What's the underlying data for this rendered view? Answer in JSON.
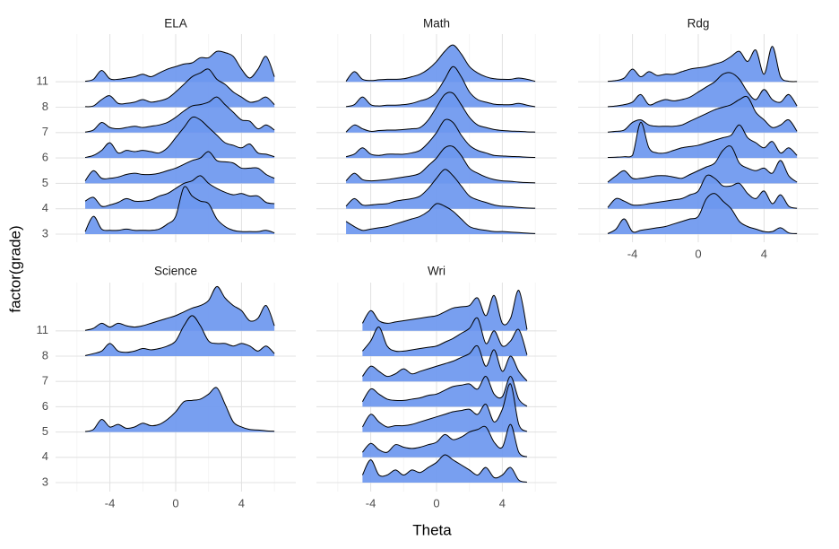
{
  "chart_data": {
    "type": "ridgeline",
    "x_label": "Theta",
    "y_label": "factor(grade)",
    "categories": [
      "3",
      "4",
      "5",
      "6",
      "7",
      "8",
      "11"
    ],
    "x": [
      -5.5,
      -5,
      -4.5,
      -4,
      -3.5,
      -3,
      -2.5,
      -2,
      -1.5,
      -1,
      -0.5,
      0,
      0.5,
      1,
      1.5,
      2,
      2.5,
      3,
      3.5,
      4,
      4.5,
      5,
      5.5,
      6
    ],
    "xlim": [
      -7.3,
      7.3
    ],
    "xticks": [
      -4,
      0,
      4
    ],
    "x_minor_grid": [
      -6,
      -2,
      2,
      6
    ],
    "grid": true,
    "color": "#6c97ef",
    "panels": [
      {
        "title": "ELA",
        "ridges": [
          [
            0.1,
            0.7,
            0.2,
            0.15,
            0.15,
            0.2,
            0.15,
            0.15,
            0.15,
            0.2,
            0.4,
            0.7,
            1.85,
            1.5,
            1.3,
            1.2,
            0.6,
            0.3,
            0.15,
            0.1,
            0.1,
            0.1,
            0.15,
            0.05
          ],
          [
            0.3,
            0.45,
            0.1,
            0.15,
            0.25,
            0.4,
            0.3,
            0.3,
            0.35,
            0.5,
            0.6,
            0.8,
            1.0,
            1.1,
            1.3,
            1.0,
            0.8,
            0.65,
            0.55,
            0.6,
            0.5,
            0.5,
            0.25,
            0.2
          ],
          [
            0.1,
            0.5,
            0.2,
            0.2,
            0.25,
            0.35,
            0.4,
            0.35,
            0.35,
            0.4,
            0.5,
            0.6,
            0.75,
            0.9,
            1.0,
            1.25,
            0.9,
            0.85,
            0.8,
            0.6,
            0.6,
            0.6,
            0.35,
            0.2
          ],
          [
            0.02,
            0.1,
            0.3,
            0.6,
            0.2,
            0.3,
            0.25,
            0.3,
            0.25,
            0.2,
            0.4,
            0.8,
            1.2,
            1.6,
            1.5,
            1.2,
            0.9,
            0.6,
            0.5,
            0.4,
            0.55,
            0.2,
            0.15,
            0.05
          ],
          [
            0.02,
            0.1,
            0.4,
            0.2,
            0.15,
            0.2,
            0.25,
            0.2,
            0.25,
            0.3,
            0.4,
            0.6,
            0.85,
            1.05,
            1.1,
            1.2,
            1.4,
            1.1,
            0.8,
            0.5,
            0.45,
            0.15,
            0.3,
            0.1
          ],
          [
            0.02,
            0.05,
            0.3,
            0.45,
            0.15,
            0.15,
            0.2,
            0.3,
            0.2,
            0.25,
            0.35,
            0.6,
            0.9,
            1.2,
            1.35,
            1.5,
            1.1,
            0.9,
            0.6,
            0.4,
            0.2,
            0.25,
            0.4,
            0.1
          ],
          [
            0.02,
            0.1,
            0.45,
            0.12,
            0.1,
            0.15,
            0.2,
            0.3,
            0.2,
            0.35,
            0.5,
            0.6,
            0.7,
            0.75,
            0.95,
            0.95,
            1.2,
            1.15,
            1.0,
            0.5,
            0.15,
            0.5,
            1.0,
            0.2
          ]
        ]
      },
      {
        "title": "Math",
        "ridges": [
          [
            0.5,
            0.3,
            0.15,
            0.2,
            0.25,
            0.3,
            0.4,
            0.5,
            0.6,
            0.7,
            0.9,
            1.2,
            1.1,
            0.9,
            0.6,
            0.3,
            0.2,
            0.15,
            0.1,
            0.1,
            0.08,
            0.06,
            0.04,
            0.02
          ],
          [
            0.1,
            0.4,
            0.15,
            0.15,
            0.18,
            0.2,
            0.3,
            0.35,
            0.4,
            0.5,
            0.8,
            1.2,
            1.55,
            1.3,
            0.9,
            0.5,
            0.35,
            0.25,
            0.15,
            0.1,
            0.08,
            0.05,
            0.03,
            0.02
          ],
          [
            0.1,
            0.4,
            0.15,
            0.1,
            0.12,
            0.15,
            0.2,
            0.25,
            0.3,
            0.4,
            0.7,
            1.0,
            1.4,
            1.45,
            1.1,
            0.6,
            0.4,
            0.25,
            0.15,
            0.1,
            0.08,
            0.05,
            0.03,
            0.02
          ],
          [
            0.05,
            0.15,
            0.4,
            0.15,
            0.1,
            0.15,
            0.15,
            0.15,
            0.2,
            0.3,
            0.6,
            1.0,
            1.5,
            1.4,
            0.9,
            0.5,
            0.3,
            0.2,
            0.1,
            0.08,
            0.06,
            0.05,
            0.03,
            0.02
          ],
          [
            0.02,
            0.3,
            0.15,
            0.05,
            0.08,
            0.1,
            0.1,
            0.12,
            0.15,
            0.2,
            0.5,
            1.0,
            1.5,
            1.55,
            1.1,
            0.6,
            0.3,
            0.2,
            0.12,
            0.08,
            0.06,
            0.05,
            0.03,
            0.02
          ],
          [
            0.02,
            0.1,
            0.4,
            0.1,
            0.05,
            0.08,
            0.08,
            0.1,
            0.15,
            0.25,
            0.35,
            0.6,
            1.1,
            1.6,
            1.2,
            0.6,
            0.3,
            0.2,
            0.12,
            0.1,
            0.1,
            0.15,
            0.08,
            0.02
          ],
          [
            0.02,
            0.4,
            0.1,
            0.05,
            0.08,
            0.1,
            0.1,
            0.12,
            0.2,
            0.3,
            0.5,
            0.8,
            1.2,
            1.45,
            1.1,
            0.6,
            0.35,
            0.2,
            0.12,
            0.1,
            0.1,
            0.15,
            0.1,
            0.02
          ]
        ]
      },
      {
        "title": "Rdg",
        "ridges": [
          [
            0.02,
            0.2,
            0.6,
            0.1,
            0.15,
            0.2,
            0.25,
            0.3,
            0.4,
            0.5,
            0.6,
            0.7,
            1.4,
            1.6,
            1.3,
            1.0,
            0.5,
            0.3,
            0.2,
            0.1,
            0.1,
            0.25,
            0.05,
            0.02
          ],
          [
            0.05,
            0.4,
            0.3,
            0.15,
            0.15,
            0.2,
            0.25,
            0.3,
            0.35,
            0.4,
            0.55,
            0.7,
            1.3,
            1.2,
            0.9,
            0.9,
            1.0,
            0.6,
            0.4,
            0.7,
            0.2,
            0.55,
            0.1,
            0.02
          ],
          [
            0.05,
            0.3,
            0.5,
            0.2,
            0.2,
            0.25,
            0.3,
            0.3,
            0.25,
            0.2,
            0.35,
            0.5,
            0.65,
            0.8,
            1.3,
            1.45,
            0.8,
            0.6,
            0.5,
            0.6,
            0.4,
            0.9,
            0.3,
            0.05
          ],
          [
            0.02,
            0.03,
            0.05,
            0.1,
            1.4,
            0.4,
            0.2,
            0.2,
            0.3,
            0.4,
            0.45,
            0.5,
            0.6,
            0.7,
            0.8,
            0.9,
            1.3,
            0.8,
            0.6,
            0.4,
            0.65,
            0.2,
            0.4,
            0.1
          ],
          [
            0.02,
            0.05,
            0.1,
            0.4,
            0.5,
            0.3,
            0.25,
            0.25,
            0.25,
            0.3,
            0.45,
            0.6,
            0.75,
            0.9,
            1.0,
            1.1,
            1.3,
            1.4,
            0.8,
            0.5,
            0.2,
            0.3,
            0.5,
            0.05
          ],
          [
            0.02,
            0.05,
            0.1,
            0.2,
            0.5,
            0.1,
            0.2,
            0.3,
            0.25,
            0.3,
            0.4,
            0.6,
            0.8,
            1.0,
            1.3,
            1.35,
            1.1,
            0.6,
            0.3,
            0.7,
            0.3,
            0.2,
            0.5,
            0.05
          ],
          [
            0.02,
            0.05,
            0.15,
            0.5,
            0.2,
            0.4,
            0.25,
            0.3,
            0.3,
            0.4,
            0.5,
            0.55,
            0.6,
            0.7,
            0.8,
            1.0,
            1.2,
            0.8,
            1.25,
            0.3,
            1.4,
            0.2,
            0.02,
            0.01
          ]
        ]
      },
      {
        "title": "Science",
        "ridges": [
          null,
          null,
          [
            0.02,
            0.1,
            0.5,
            0.2,
            0.3,
            0.15,
            0.2,
            0.35,
            0.25,
            0.3,
            0.5,
            0.8,
            1.2,
            1.25,
            1.3,
            1.5,
            1.75,
            1.1,
            0.4,
            0.2,
            0.1,
            0.08,
            0.05,
            0.03
          ],
          null,
          null,
          [
            0.02,
            0.1,
            0.2,
            0.5,
            0.2,
            0.15,
            0.2,
            0.3,
            0.25,
            0.3,
            0.4,
            0.6,
            1.2,
            1.6,
            1.2,
            0.6,
            0.5,
            0.5,
            0.4,
            0.5,
            0.4,
            0.2,
            0.4,
            0.1
          ],
          [
            0.02,
            0.1,
            0.3,
            0.15,
            0.3,
            0.2,
            0.15,
            0.2,
            0.3,
            0.4,
            0.5,
            0.6,
            0.75,
            0.9,
            1.0,
            1.2,
            1.75,
            1.3,
            1.0,
            0.8,
            0.4,
            0.5,
            1.0,
            0.2
          ]
        ]
      },
      {
        "title": "Wri",
        "ridges": [
          [
            null,
            null,
            0.3,
            0.9,
            0.3,
            0.3,
            0.5,
            0.3,
            0.5,
            0.4,
            0.6,
            0.8,
            1.1,
            0.9,
            0.7,
            0.5,
            0.3,
            0.6,
            0.2,
            0.3,
            0.6,
            0.1,
            0.02,
            null
          ],
          [
            null,
            null,
            0.2,
            0.55,
            0.3,
            0.2,
            0.5,
            0.4,
            0.35,
            0.4,
            0.5,
            0.6,
            0.9,
            0.7,
            0.8,
            1.0,
            1.1,
            1.2,
            0.6,
            0.4,
            1.3,
            0.2,
            0.02,
            null
          ],
          [
            null,
            null,
            0.2,
            0.7,
            0.4,
            0.2,
            0.25,
            0.25,
            0.3,
            0.4,
            0.5,
            0.6,
            0.7,
            0.8,
            0.85,
            0.9,
            0.7,
            1.1,
            0.4,
            0.9,
            1.9,
            0.3,
            0.02,
            null
          ],
          [
            null,
            null,
            0.2,
            0.7,
            0.5,
            0.3,
            0.25,
            0.25,
            0.3,
            0.35,
            0.45,
            0.5,
            0.65,
            0.8,
            0.85,
            0.9,
            0.7,
            1.2,
            0.5,
            0.4,
            1.2,
            0.3,
            0.02,
            null
          ],
          [
            null,
            null,
            0.2,
            0.6,
            0.4,
            0.2,
            0.3,
            0.5,
            0.3,
            0.4,
            0.5,
            0.6,
            0.7,
            0.8,
            0.95,
            1.1,
            1.4,
            0.6,
            1.25,
            0.4,
            1.0,
            0.4,
            0.02,
            null
          ],
          [
            null,
            null,
            0.2,
            0.6,
            1.15,
            0.4,
            0.2,
            0.2,
            0.25,
            0.3,
            0.35,
            0.4,
            0.55,
            0.7,
            0.9,
            1.1,
            1.5,
            0.5,
            1.0,
            0.4,
            0.6,
            1.05,
            0.05,
            null
          ],
          [
            null,
            null,
            0.3,
            0.8,
            0.4,
            0.3,
            0.35,
            0.4,
            0.45,
            0.5,
            0.55,
            0.6,
            0.75,
            0.9,
            0.95,
            1.0,
            1.3,
            0.6,
            1.4,
            0.3,
            0.5,
            1.6,
            0.05,
            null
          ]
        ]
      }
    ]
  }
}
